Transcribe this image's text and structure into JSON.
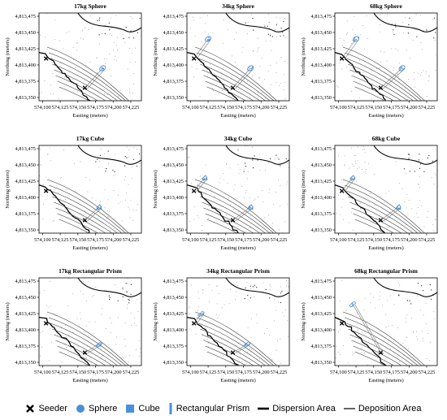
{
  "chart_data": {
    "type": "scatter",
    "panels": [
      {
        "title": "17kg Sphere",
        "shape": "Sphere"
      },
      {
        "title": "34kg Sphere",
        "shape": "Sphere"
      },
      {
        "title": "68kg Sphere",
        "shape": "Sphere"
      },
      {
        "title": "17kg Cube",
        "shape": "Cube"
      },
      {
        "title": "34kg Cube",
        "shape": "Cube"
      },
      {
        "title": "68kg Cube",
        "shape": "Cube"
      },
      {
        "title": "17kg Rectangular Prism",
        "shape": "Rectangular Prism"
      },
      {
        "title": "34kg Rectangular Prism",
        "shape": "Rectangular Prism"
      },
      {
        "title": "68kg Rectangular Prism",
        "shape": "Rectangular Prism"
      }
    ],
    "xlabel": "Easting (meters)",
    "ylabel": "Northing (meters)",
    "xlim": [
      574095,
      574240
    ],
    "ylim": [
      4813345,
      4813480
    ],
    "x_ticks": [
      "574,100",
      "574,125",
      "574,150",
      "574,175",
      "574,200",
      "574,225"
    ],
    "x_tick_values": [
      574100,
      574125,
      574150,
      574175,
      574200,
      574225
    ],
    "y_ticks": [
      "4,813,475",
      "4,813,450",
      "4,813,425",
      "4,813,400",
      "4,813,375",
      "4,813,350"
    ],
    "y_tick_values": [
      4813475,
      4813450,
      4813425,
      4813400,
      4813375,
      4813350
    ],
    "seeder_points": [
      [
        [
          574105,
          4813410
        ],
        [
          574160,
          4813365
        ]
      ],
      [
        [
          574105,
          4813410
        ],
        [
          574160,
          4813365
        ]
      ],
      [
        [
          574105,
          4813410
        ],
        [
          574160,
          4813365
        ]
      ],
      [
        [
          574105,
          4813410
        ],
        [
          574160,
          4813365
        ]
      ],
      [
        [
          574105,
          4813410
        ],
        [
          574160,
          4813365
        ]
      ],
      [
        [
          574105,
          4813410
        ],
        [
          574160,
          4813365
        ]
      ],
      [
        [
          574105,
          4813410
        ],
        [
          574160,
          4813365
        ]
      ],
      [
        [
          574105,
          4813410
        ],
        [
          574160,
          4813365
        ]
      ],
      [
        [
          574105,
          4813410
        ],
        [
          574160,
          4813365
        ]
      ]
    ],
    "deposition_centers": [
      [
        574185,
        4813395
      ],
      [
        [
          574125,
          4813440
        ],
        [
          574185,
          4813395
        ]
      ],
      [
        [
          574125,
          4813440
        ],
        [
          574190,
          4813395
        ]
      ],
      [
        574180,
        4813385
      ],
      [
        [
          574120,
          4813430
        ],
        [
          574185,
          4813385
        ]
      ],
      [
        [
          574120,
          4813430
        ],
        [
          574185,
          4813385
        ]
      ],
      [
        574180,
        4813378
      ],
      [
        [
          574115,
          4813425
        ],
        [
          574180,
          4813378
        ]
      ],
      [
        574120,
        4813440
      ]
    ],
    "legend": [
      "Seeder",
      "Sphere",
      "Cube",
      "Rectangular Prism",
      "Dispersion Area",
      "Deposition Area"
    ],
    "colors": {
      "sphere": "#4a90d9",
      "cube": "#4a90d9",
      "prism": "#4a90d9",
      "ink": "#000000",
      "stream": "#555555"
    }
  }
}
